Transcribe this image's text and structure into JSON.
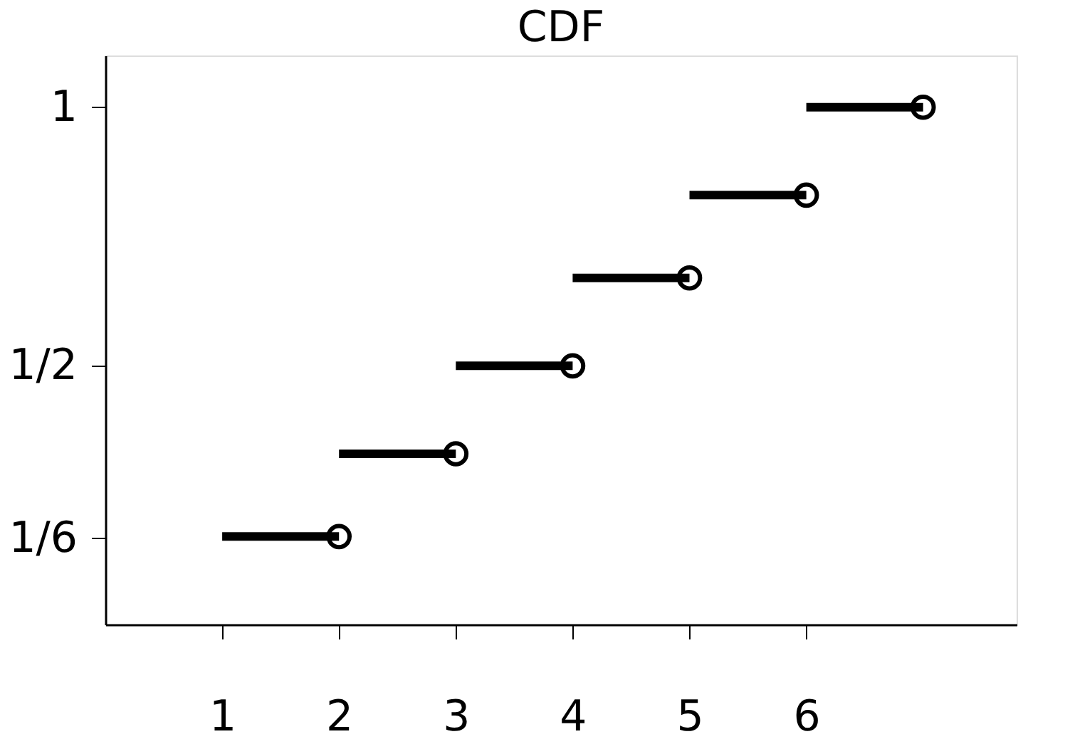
{
  "chart_data": {
    "type": "line",
    "title": "CDF",
    "series": [
      {
        "color": "#000000",
        "marker": "none",
        "x": [
          1,
          2
        ],
        "values": [
          0.17,
          0.17
        ]
      },
      {
        "color": "#000000",
        "marker": "none",
        "x": [
          2,
          3
        ],
        "values": [
          0.33,
          0.33
        ]
      },
      {
        "color": "#000000",
        "marker": "none",
        "x": [
          3,
          4
        ],
        "values": [
          0.5,
          0.5
        ]
      },
      {
        "color": "#000000",
        "marker": "none",
        "x": [
          4,
          5
        ],
        "values": [
          0.67,
          0.67
        ]
      },
      {
        "color": "#000000",
        "marker": "none",
        "x": [
          5,
          6
        ],
        "values": [
          0.83,
          0.83
        ]
      },
      {
        "color": "#000000",
        "marker": "none",
        "x": [
          6,
          7
        ],
        "values": [
          1,
          1
        ]
      },
      {
        "type": "scatter",
        "color": "#000000",
        "marker": "circle",
        "x": [
          2,
          3,
          4,
          5,
          6,
          7
        ],
        "values": [
          0.17,
          0.33,
          0.5,
          0.67,
          0.83,
          1
        ]
      }
    ],
    "line_style": "solid",
    "xlim": [
      0,
      7.8
    ],
    "xticks": [
      1,
      2,
      3,
      4,
      5,
      6
    ],
    "ylim": [
      0,
      1.1
    ],
    "yticks": [
      {
        "value": 0.1667,
        "label": "1/6"
      },
      {
        "value": 0.5,
        "label": "1/2"
      },
      {
        "value": 1,
        "label": "1"
      }
    ],
    "grid": false
  }
}
